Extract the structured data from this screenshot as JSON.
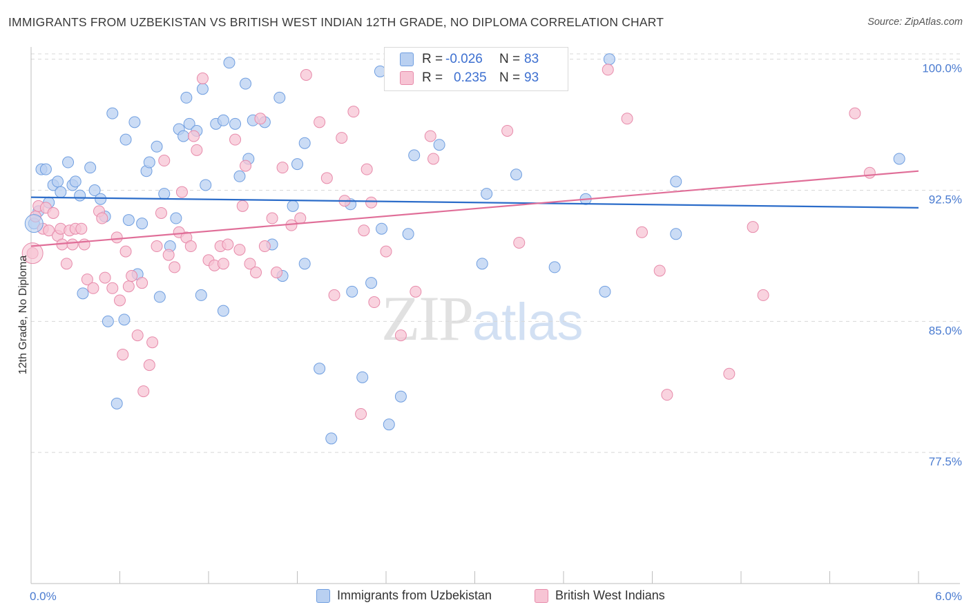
{
  "header": {
    "title": "IMMIGRANTS FROM UZBEKISTAN VS BRITISH WEST INDIAN 12TH GRADE, NO DIPLOMA CORRELATION CHART",
    "source": "Source: ZipAtlas.com"
  },
  "watermark": {
    "zip": "ZIP",
    "atlas": "atlas"
  },
  "legend": {
    "rows": [
      {
        "r_label": "R =",
        "r_value": "-0.026",
        "n_label": "N =",
        "n_value": "83"
      },
      {
        "r_label": "R =",
        "r_value": "0.235",
        "n_label": "N =",
        "n_value": "93"
      }
    ]
  },
  "bottom_legend": {
    "series1": "Immigrants from Uzbekistan",
    "series2": "British West Indians"
  },
  "colors": {
    "blue_fill": "#b9d0f1",
    "blue_stroke": "#6f9ee0",
    "blue_line": "#2b6cc9",
    "pink_fill": "#f7c4d4",
    "pink_stroke": "#e78aaa",
    "pink_line": "#e06e98",
    "tick_text": "#4a7bd0",
    "grid": "#d8d8d8"
  },
  "chart_data": {
    "type": "scatter",
    "title": "IMMIGRANTS FROM UZBEKISTAN VS BRITISH WEST INDIAN 12TH GRADE, NO DIPLOMA CORRELATION CHART",
    "xlabel": "",
    "ylabel": "12th Grade, No Diploma",
    "xlim": [
      0.0,
      6.0
    ],
    "ylim": [
      70.0,
      100.7
    ],
    "x_tick_labels": [
      "0.0%",
      "6.0%"
    ],
    "y_ticks": [
      100.0,
      92.5,
      85.0,
      77.5
    ],
    "y_tick_labels": [
      "100.0%",
      "92.5%",
      "85.0%",
      "77.5%"
    ],
    "grid": true,
    "legend_position": "top-center",
    "series": [
      {
        "name": "Immigrants from Uzbekistan",
        "R": -0.026,
        "N": 83,
        "trend": [
          [
            0.0,
            92.1
          ],
          [
            6.0,
            91.5
          ]
        ],
        "points": [
          [
            0.02,
            90.6
          ],
          [
            0.05,
            91.3
          ],
          [
            0.07,
            93.7
          ],
          [
            0.1,
            93.7
          ],
          [
            0.12,
            91.8
          ],
          [
            0.15,
            92.8
          ],
          [
            0.18,
            93.0
          ],
          [
            0.2,
            92.4
          ],
          [
            0.25,
            94.1
          ],
          [
            0.28,
            92.8
          ],
          [
            0.3,
            93.0
          ],
          [
            0.33,
            92.2
          ],
          [
            0.35,
            86.6
          ],
          [
            0.4,
            93.8
          ],
          [
            0.43,
            92.5
          ],
          [
            0.47,
            92.0
          ],
          [
            0.5,
            91.0
          ],
          [
            0.52,
            85.0
          ],
          [
            0.55,
            96.9
          ],
          [
            0.58,
            80.3
          ],
          [
            0.63,
            85.1
          ],
          [
            0.64,
            95.4
          ],
          [
            0.66,
            90.8
          ],
          [
            0.7,
            96.4
          ],
          [
            0.72,
            87.7
          ],
          [
            0.75,
            90.6
          ],
          [
            0.78,
            93.6
          ],
          [
            0.8,
            94.1
          ],
          [
            0.85,
            95.0
          ],
          [
            0.87,
            86.4
          ],
          [
            0.9,
            92.3
          ],
          [
            0.94,
            89.3
          ],
          [
            0.98,
            90.9
          ],
          [
            1.0,
            96.0
          ],
          [
            1.03,
            95.6
          ],
          [
            1.05,
            97.8
          ],
          [
            1.07,
            96.3
          ],
          [
            1.12,
            95.9
          ],
          [
            1.15,
            86.5
          ],
          [
            1.16,
            98.3
          ],
          [
            1.18,
            92.8
          ],
          [
            1.25,
            96.3
          ],
          [
            1.3,
            96.5
          ],
          [
            1.3,
            85.6
          ],
          [
            1.34,
            99.8
          ],
          [
            1.38,
            96.3
          ],
          [
            1.41,
            93.3
          ],
          [
            1.45,
            98.6
          ],
          [
            1.47,
            94.3
          ],
          [
            1.5,
            96.5
          ],
          [
            1.58,
            96.4
          ],
          [
            1.63,
            89.4
          ],
          [
            1.68,
            97.8
          ],
          [
            1.7,
            87.6
          ],
          [
            1.77,
            91.6
          ],
          [
            1.8,
            94.0
          ],
          [
            1.85,
            95.2
          ],
          [
            1.85,
            88.3
          ],
          [
            1.95,
            82.3
          ],
          [
            2.03,
            78.3
          ],
          [
            2.16,
            91.7
          ],
          [
            2.17,
            86.7
          ],
          [
            2.24,
            81.8
          ],
          [
            2.3,
            87.2
          ],
          [
            2.36,
            99.3
          ],
          [
            2.37,
            90.3
          ],
          [
            2.42,
            79.1
          ],
          [
            2.5,
            80.7
          ],
          [
            2.55,
            90.0
          ],
          [
            2.59,
            94.5
          ],
          [
            2.76,
            95.1
          ],
          [
            2.8,
            99.1
          ],
          [
            3.05,
            88.3
          ],
          [
            3.08,
            92.3
          ],
          [
            3.12,
            100.0
          ],
          [
            3.28,
            93.4
          ],
          [
            3.54,
            88.1
          ],
          [
            3.75,
            92.0
          ],
          [
            3.88,
            86.7
          ],
          [
            3.91,
            100.0
          ],
          [
            4.36,
            93.0
          ],
          [
            4.36,
            90.0
          ],
          [
            5.87,
            94.3
          ]
        ]
      },
      {
        "name": "British West Indians",
        "R": 0.235,
        "N": 93,
        "trend": [
          [
            0.0,
            89.3
          ],
          [
            6.0,
            93.6
          ]
        ],
        "points": [
          [
            0.01,
            88.9
          ],
          [
            0.03,
            91.0
          ],
          [
            0.05,
            91.6
          ],
          [
            0.08,
            90.3
          ],
          [
            0.1,
            91.5
          ],
          [
            0.12,
            90.2
          ],
          [
            0.15,
            91.2
          ],
          [
            0.18,
            89.9
          ],
          [
            0.2,
            90.3
          ],
          [
            0.21,
            89.4
          ],
          [
            0.24,
            88.3
          ],
          [
            0.26,
            90.2
          ],
          [
            0.28,
            89.4
          ],
          [
            0.3,
            90.3
          ],
          [
            0.34,
            90.3
          ],
          [
            0.36,
            89.4
          ],
          [
            0.38,
            87.4
          ],
          [
            0.42,
            86.9
          ],
          [
            0.46,
            91.3
          ],
          [
            0.48,
            90.9
          ],
          [
            0.5,
            87.5
          ],
          [
            0.55,
            86.9
          ],
          [
            0.58,
            89.8
          ],
          [
            0.6,
            86.2
          ],
          [
            0.62,
            83.1
          ],
          [
            0.64,
            89.0
          ],
          [
            0.66,
            87.0
          ],
          [
            0.68,
            87.6
          ],
          [
            0.72,
            84.2
          ],
          [
            0.75,
            87.2
          ],
          [
            0.76,
            81.0
          ],
          [
            0.8,
            82.5
          ],
          [
            0.82,
            83.8
          ],
          [
            0.85,
            89.3
          ],
          [
            0.88,
            91.2
          ],
          [
            0.9,
            94.2
          ],
          [
            0.93,
            88.8
          ],
          [
            0.97,
            88.1
          ],
          [
            1.0,
            90.1
          ],
          [
            1.02,
            92.4
          ],
          [
            1.05,
            89.8
          ],
          [
            1.08,
            89.3
          ],
          [
            1.1,
            95.6
          ],
          [
            1.12,
            94.8
          ],
          [
            1.16,
            98.9
          ],
          [
            1.2,
            88.5
          ],
          [
            1.24,
            88.2
          ],
          [
            1.28,
            89.3
          ],
          [
            1.3,
            88.3
          ],
          [
            1.33,
            89.4
          ],
          [
            1.38,
            95.4
          ],
          [
            1.41,
            89.1
          ],
          [
            1.43,
            91.6
          ],
          [
            1.45,
            93.9
          ],
          [
            1.48,
            88.3
          ],
          [
            1.52,
            87.8
          ],
          [
            1.55,
            96.6
          ],
          [
            1.58,
            89.3
          ],
          [
            1.63,
            90.9
          ],
          [
            1.66,
            87.8
          ],
          [
            1.7,
            93.8
          ],
          [
            1.76,
            90.5
          ],
          [
            1.82,
            90.9
          ],
          [
            1.86,
            99.1
          ],
          [
            1.95,
            96.4
          ],
          [
            2.0,
            93.2
          ],
          [
            2.05,
            86.5
          ],
          [
            2.1,
            95.5
          ],
          [
            2.12,
            91.9
          ],
          [
            2.18,
            97.0
          ],
          [
            2.23,
            79.7
          ],
          [
            2.25,
            90.2
          ],
          [
            2.27,
            93.7
          ],
          [
            2.3,
            91.8
          ],
          [
            2.32,
            86.1
          ],
          [
            2.4,
            89.0
          ],
          [
            2.5,
            84.2
          ],
          [
            2.6,
            86.7
          ],
          [
            2.7,
            95.6
          ],
          [
            2.72,
            94.3
          ],
          [
            3.0,
            99.2
          ],
          [
            3.22,
            95.9
          ],
          [
            3.3,
            89.5
          ],
          [
            3.9,
            99.4
          ],
          [
            4.03,
            96.6
          ],
          [
            4.13,
            90.1
          ],
          [
            4.25,
            87.9
          ],
          [
            4.3,
            80.8
          ],
          [
            4.72,
            82.0
          ],
          [
            4.88,
            90.4
          ],
          [
            4.95,
            86.5
          ],
          [
            5.57,
            96.9
          ],
          [
            5.67,
            93.5
          ]
        ]
      }
    ]
  }
}
